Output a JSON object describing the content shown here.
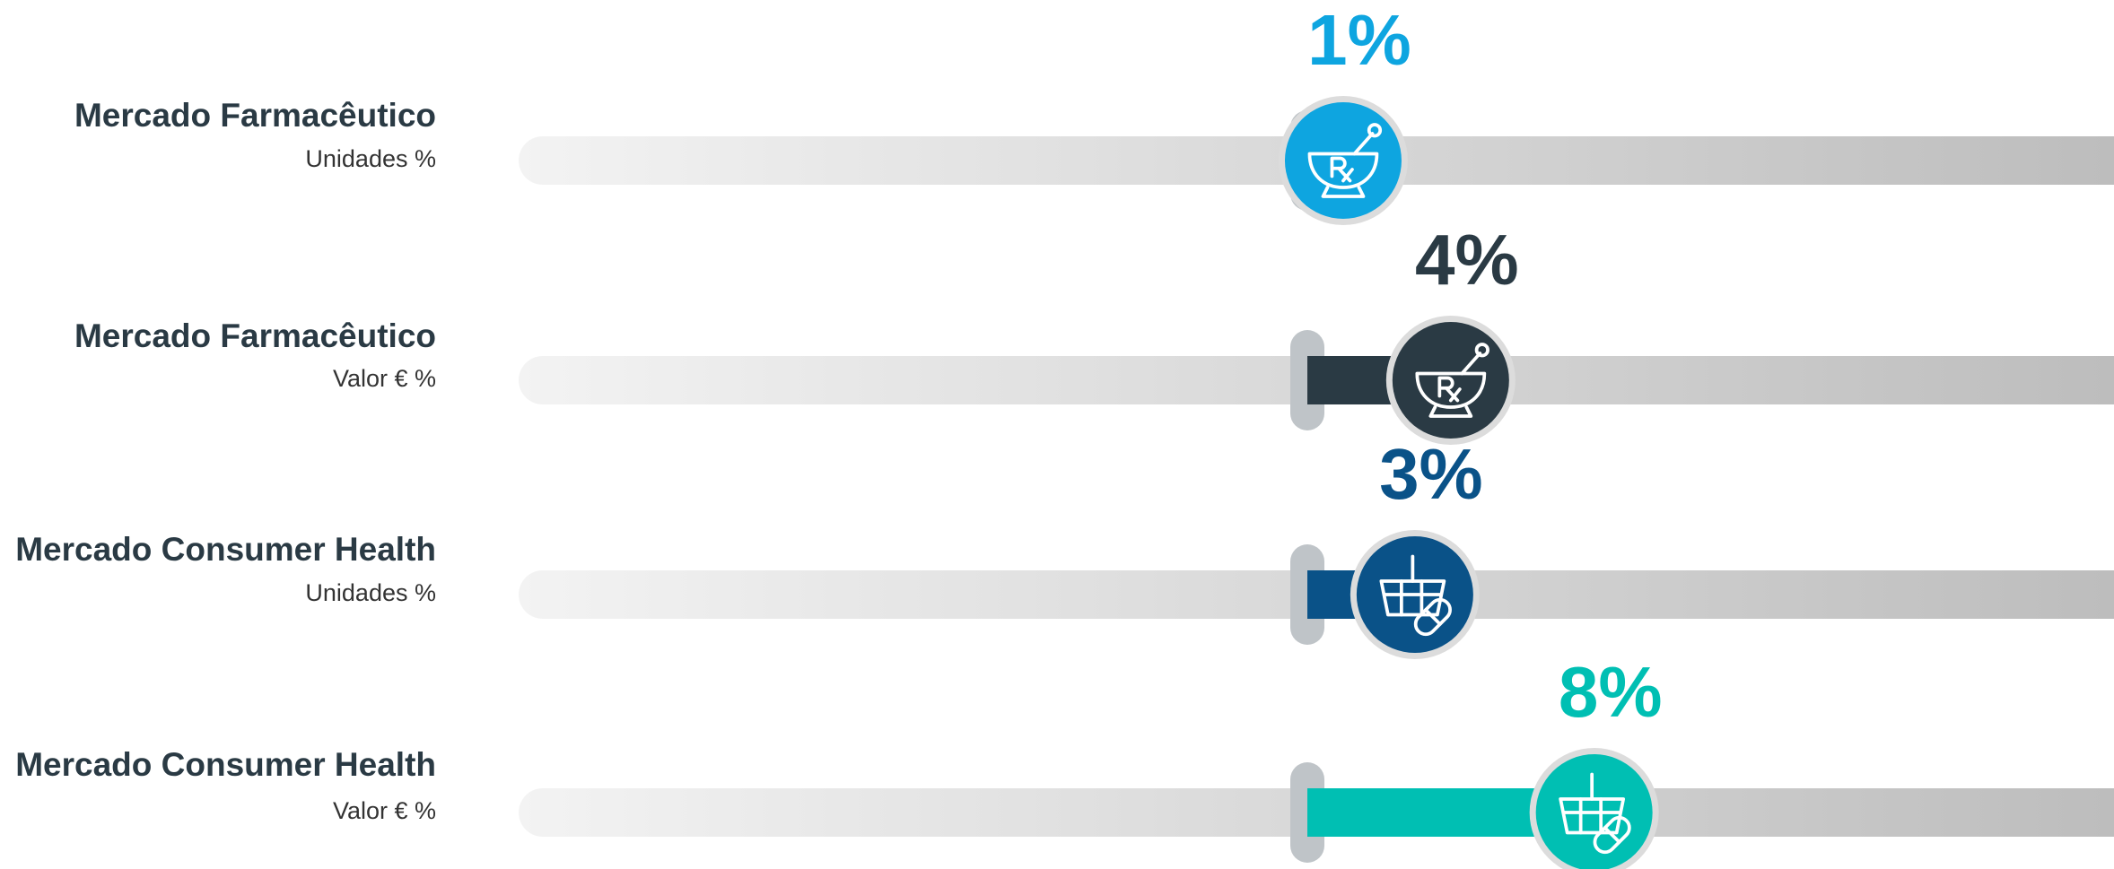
{
  "chart_data": {
    "type": "slider",
    "categories": [
      "Mercado Farmacêutico",
      "Mercado Farmacêutico",
      "Mercado Consumer Health",
      "Mercado Consumer Health"
    ],
    "subtitles": [
      "Unidades %",
      "Valor € %",
      "Unidades %",
      "Valor € %"
    ],
    "values": [
      1,
      4,
      3,
      8
    ],
    "value_labels": [
      "1%",
      "4%",
      "3%",
      "8%"
    ],
    "colors": [
      "#0ea5e0",
      "#2a3a44",
      "#0a5288",
      "#00bfb3"
    ],
    "xlim": [
      -22,
      22.5
    ]
  }
}
